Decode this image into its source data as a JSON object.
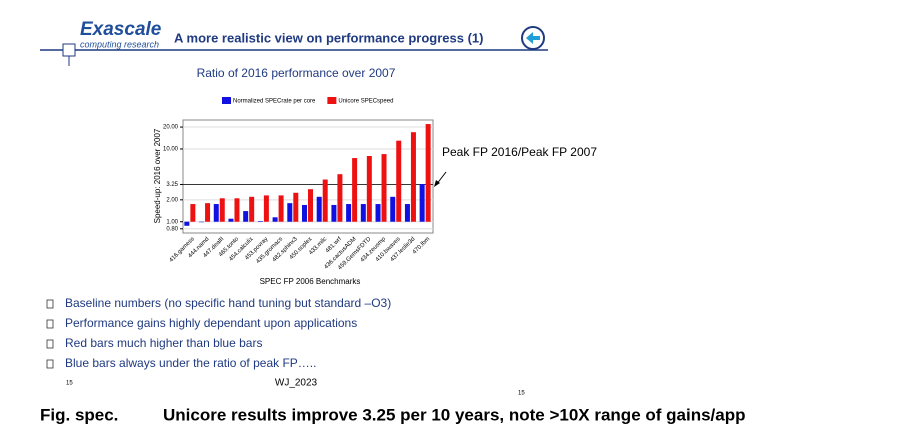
{
  "header": {
    "logo": "Exascale",
    "logo_sub": "computing research",
    "title": "A more realistic view on performance progress (1)"
  },
  "chart_data": {
    "type": "bar",
    "title": "Ratio of 2016 performance over 2007",
    "x_label": "SPEC FP 2006 Benchmarks",
    "y_label": "Speed-up: 2016 over 2007",
    "yscale": "log",
    "ylim": [
      0.7,
      25
    ],
    "yticks": [
      {
        "value": 0.8,
        "label": "0.80"
      },
      {
        "value": 1,
        "label": "1.00"
      },
      {
        "value": 2,
        "label": "2.00"
      },
      {
        "value": 3.25,
        "label": "3.25"
      },
      {
        "value": 10,
        "label": "10.00"
      },
      {
        "value": 20,
        "label": "20.00"
      }
    ],
    "grid": true,
    "categories": [
      "416.gamess",
      "444.namd",
      "447.dealII",
      "465.tonto",
      "454.calculix",
      "453.povray",
      "435.gromacs",
      "482.sphinx3",
      "450.soplex",
      "433.milc",
      "481.wrf",
      "436.cactusADM",
      "459.GemsFDTD",
      "434.zeusmp",
      "410.bwaves",
      "437.leslie3d",
      "470.lbm"
    ],
    "series": [
      {
        "name": "Normalized SPECrate per core",
        "color": "#1010e0",
        "values": [
          0.88,
          1.0,
          1.75,
          1.1,
          1.4,
          1.02,
          1.15,
          1.8,
          1.7,
          2.2,
          1.7,
          1.75,
          1.75,
          1.75,
          2.2,
          1.75,
          3.3
        ]
      },
      {
        "name": "Unicore SPECspeed",
        "color": "#ee1111",
        "values": [
          1.75,
          1.8,
          2.1,
          2.1,
          2.2,
          2.3,
          2.3,
          2.5,
          2.8,
          3.8,
          4.5,
          7.5,
          8,
          8.5,
          13,
          17,
          22
        ]
      }
    ],
    "annotation": "Peak FP 2016/Peak FP 2007"
  },
  "bullets": [
    "Baseline numbers (no specific hand tuning but standard –O3)",
    "Performance gains highly dependant upon applications",
    "Red bars much higher than blue bars",
    "Blue bars always under the ratio of peak FP….."
  ],
  "footer": {
    "page_left": "15",
    "author": "WJ_2023",
    "page_right": "15"
  },
  "caption": {
    "label": "Fig. spec.",
    "text": "Unicore results improve 3.25 per 10 years, note >10X range of gains/app"
  }
}
